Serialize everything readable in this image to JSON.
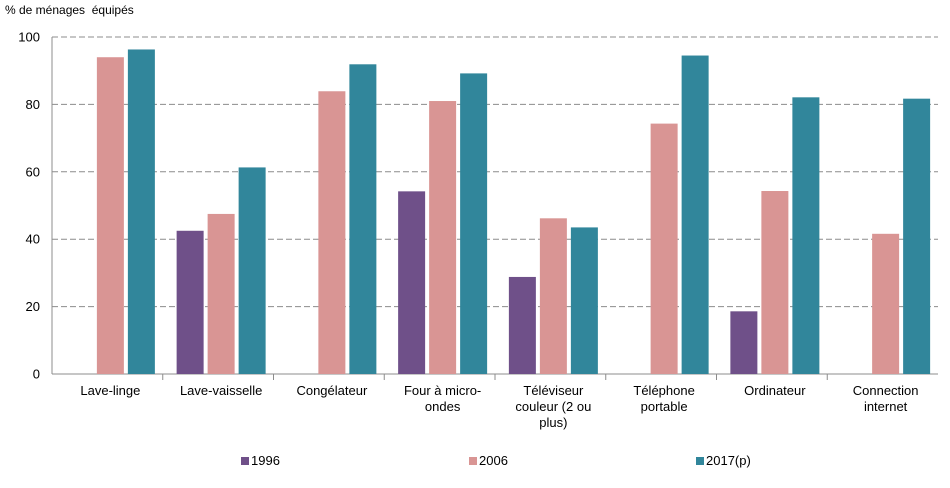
{
  "chart_data": {
    "type": "bar",
    "ylabel": "% de ménages  équipés",
    "ylim": [
      0,
      100
    ],
    "yticks": [
      0,
      20,
      40,
      60,
      80,
      100
    ],
    "grid": "horizontal-dashed",
    "legend_position": "bottom",
    "categories": [
      [
        "Lave-linge"
      ],
      [
        "Lave-vaisselle"
      ],
      [
        "Congélateur"
      ],
      [
        "Four à micro-",
        "ondes"
      ],
      [
        "Téléviseur",
        "couleur (2 ou",
        "plus)"
      ],
      [
        "Téléphone",
        "portable"
      ],
      [
        "Ordinateur"
      ],
      [
        "Connection",
        "internet"
      ]
    ],
    "series": [
      {
        "name": "1996",
        "color": "#6f5089",
        "values": [
          null,
          42.5,
          null,
          54.2,
          28.8,
          null,
          18.6,
          null
        ]
      },
      {
        "name": "2006",
        "color": "#d99594",
        "values": [
          94.0,
          47.5,
          83.9,
          81.0,
          46.2,
          74.3,
          54.3,
          41.6
        ]
      },
      {
        "name": "2017(p)",
        "color": "#31869b",
        "values": [
          96.3,
          61.3,
          91.9,
          89.2,
          43.5,
          94.5,
          82.1,
          81.7
        ]
      }
    ]
  }
}
